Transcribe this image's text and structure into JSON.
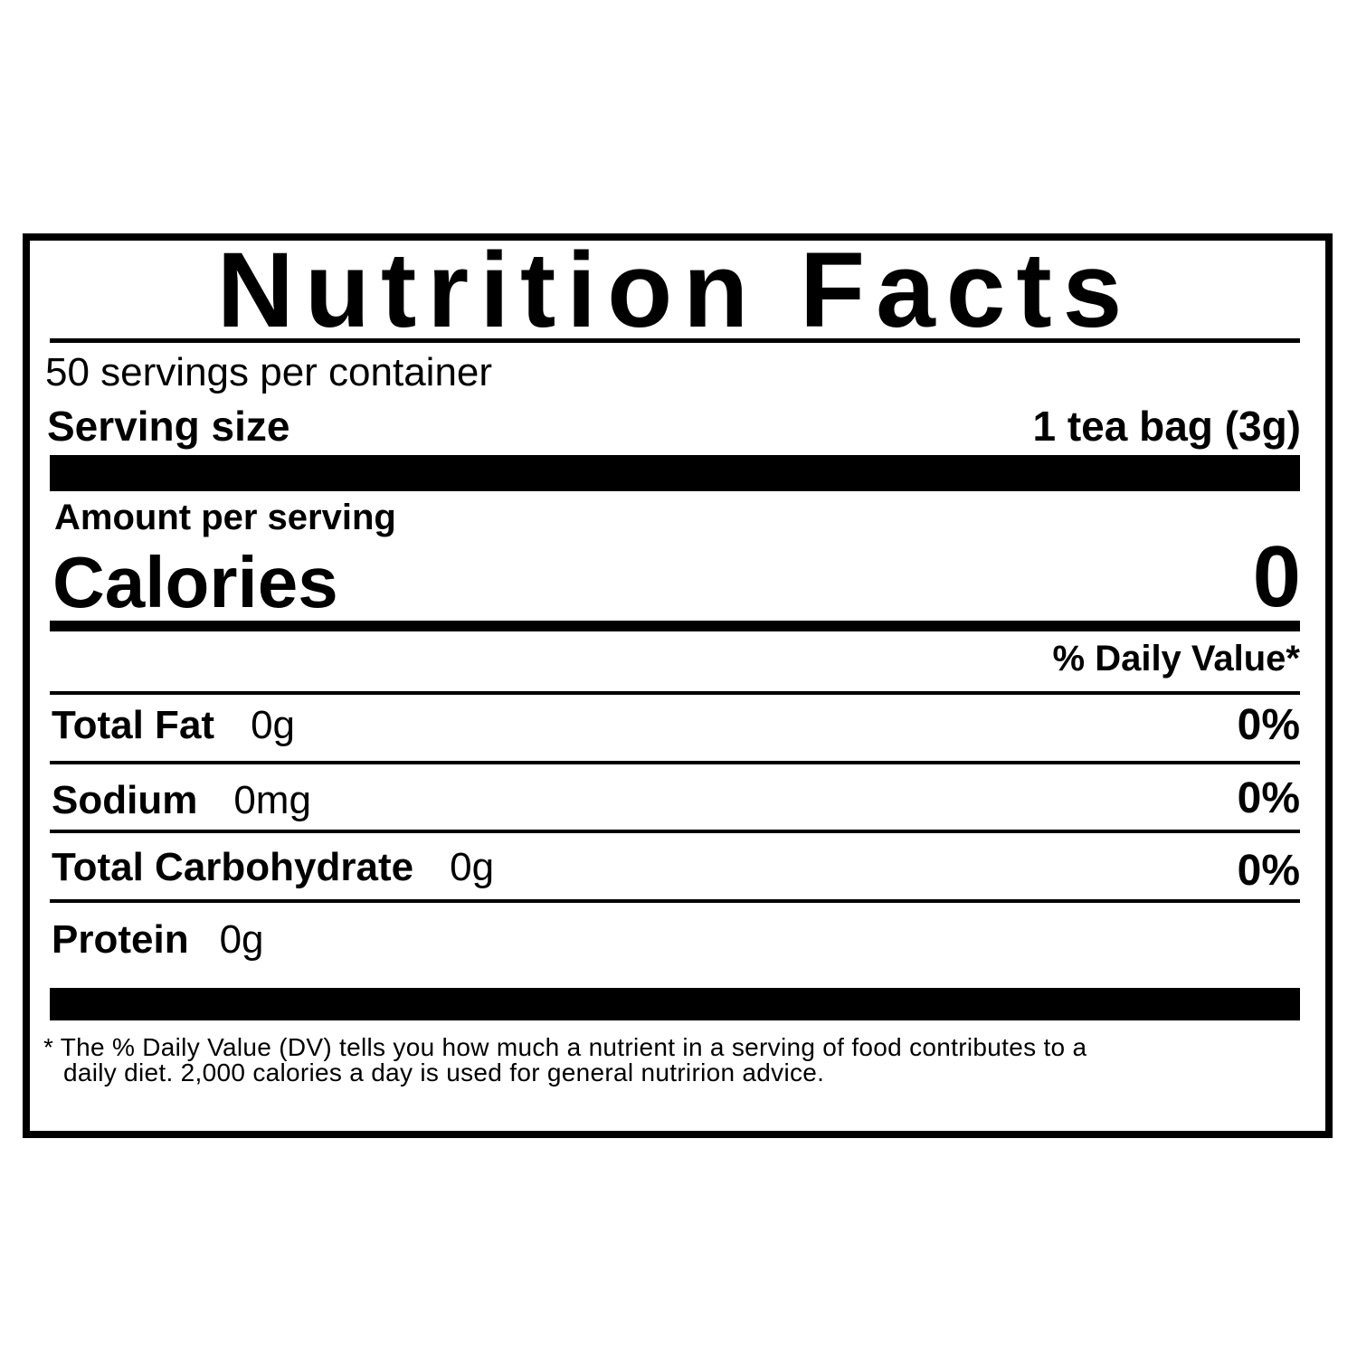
{
  "label": {
    "title": "Nutrition Facts",
    "servings_per_container": "50 servings per container",
    "serving_size_label": "Serving size",
    "serving_size_value": "1 tea bag (3g)",
    "amount_per_serving": "Amount per serving",
    "calories_label": "Calories",
    "calories_value": "0",
    "daily_value_header": "% Daily Value*",
    "nutrients": [
      {
        "name": "Total Fat",
        "amount": "0g",
        "dv": "0%"
      },
      {
        "name": "Sodium",
        "amount": "0mg",
        "dv": "0%"
      },
      {
        "name": "Total Carbohydrate",
        "amount": "0g",
        "dv": "0%"
      },
      {
        "name": "Protein",
        "amount": "0g"
      }
    ],
    "footnote_line1": "* The % Daily Value (DV) tells you how much a nutrient in a serving of food contributes to a",
    "footnote_line2": "daily diet. 2,000 calories a day is used for general nutririon advice."
  }
}
